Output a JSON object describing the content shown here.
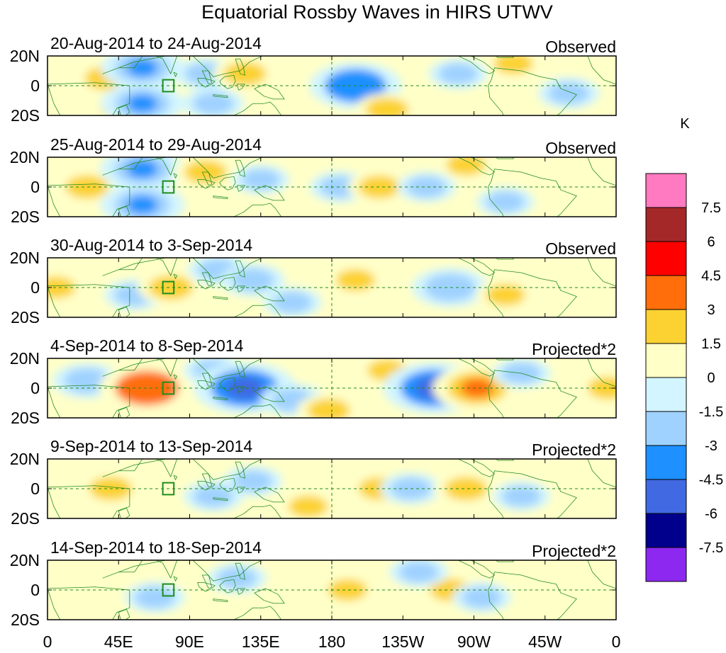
{
  "chart_data": {
    "type": "heatmap",
    "title": "Equatorial Rossby Waves in HIRS UTWV",
    "x_ticks": [
      "0",
      "45E",
      "90E",
      "135E",
      "180",
      "135W",
      "90W",
      "45W",
      "0"
    ],
    "y_ticks": [
      "20N",
      "0",
      "20S"
    ],
    "xlim_deg_east": [
      0,
      360
    ],
    "ylim_deg": [
      -20,
      20
    ],
    "reference_lines": [
      "equator",
      "180"
    ],
    "panels": [
      {
        "date_range": "20-Aug-2014 to 24-Aug-2014",
        "type": "Observed"
      },
      {
        "date_range": "25-Aug-2014 to 29-Aug-2014",
        "type": "Observed"
      },
      {
        "date_range": "30-Aug-2014 to 3-Sep-2014",
        "type": "Observed"
      },
      {
        "date_range": "4-Sep-2014 to 8-Sep-2014",
        "type": "Projected*2"
      },
      {
        "date_range": "9-Sep-2014 to 13-Sep-2014",
        "type": "Projected*2"
      },
      {
        "date_range": "14-Sep-2014 to 18-Sep-2014",
        "type": "Projected*2"
      }
    ],
    "colorbar": {
      "unit": "K",
      "labels": [
        "7.5",
        "6",
        "4.5",
        "3",
        "1.5",
        "0",
        "-1.5",
        "-3",
        "-4.5",
        "-6",
        "-7.5"
      ],
      "bins": [
        {
          "range": "> 7.5",
          "color": "#ff7ac0"
        },
        {
          "range": "6 to 7.5",
          "color": "#a52828"
        },
        {
          "range": "4.5 to 6",
          "color": "#ff0000"
        },
        {
          "range": "3 to 4.5",
          "color": "#ff6e0a"
        },
        {
          "range": "1.5 to 3",
          "color": "#fcd232"
        },
        {
          "range": "0 to 1.5",
          "color": "#ffffc8"
        },
        {
          "range": "-1.5 to 0",
          "color": "#d2f5ff"
        },
        {
          "range": "-3 to -1.5",
          "color": "#a0d2ff"
        },
        {
          "range": "-4.5 to -3",
          "color": "#1e90ff"
        },
        {
          "range": "-6 to -4.5",
          "color": "#4169e1"
        },
        {
          "range": "-7.5 to -6",
          "color": "#00008c"
        },
        {
          "range": "< -7.5",
          "color": "#8c28f0"
        }
      ]
    },
    "anomaly_features": [
      [
        {
          "lon": 37,
          "lat": 5,
          "val": 2.0
        },
        {
          "lon": 47,
          "lat": -15,
          "val": 2.0
        },
        {
          "lon": 60,
          "lat": 12,
          "val": -3.5
        },
        {
          "lon": 60,
          "lat": -12,
          "val": -3.5
        },
        {
          "lon": 100,
          "lat": 8,
          "val": -1.8
        },
        {
          "lon": 105,
          "lat": -12,
          "val": -1.8
        },
        {
          "lon": 125,
          "lat": 8,
          "val": 2.0
        },
        {
          "lon": 195,
          "lat": 0,
          "val": -4.2
        },
        {
          "lon": 215,
          "lat": -16,
          "val": 2.0
        },
        {
          "lon": 260,
          "lat": 8,
          "val": -1.6
        },
        {
          "lon": 295,
          "lat": 15,
          "val": 1.6
        },
        {
          "lon": 330,
          "lat": -5,
          "val": -1.8
        }
      ],
      [
        {
          "lon": 25,
          "lat": 0,
          "val": 2.0
        },
        {
          "lon": 60,
          "lat": 12,
          "val": -3.6
        },
        {
          "lon": 60,
          "lat": -12,
          "val": -3.6
        },
        {
          "lon": 100,
          "lat": 10,
          "val": 2.0
        },
        {
          "lon": 135,
          "lat": 5,
          "val": -1.5
        },
        {
          "lon": 185,
          "lat": 0,
          "val": -1.7
        },
        {
          "lon": 210,
          "lat": 0,
          "val": 1.9
        },
        {
          "lon": 240,
          "lat": 0,
          "val": -1.6
        },
        {
          "lon": 265,
          "lat": 15,
          "val": 1.6
        },
        {
          "lon": 290,
          "lat": -10,
          "val": -1.5
        }
      ],
      [
        {
          "lon": 5,
          "lat": 0,
          "val": 1.7
        },
        {
          "lon": 55,
          "lat": -5,
          "val": -1.7
        },
        {
          "lon": 78,
          "lat": 0,
          "val": 2.2
        },
        {
          "lon": 108,
          "lat": 12,
          "val": -1.7
        },
        {
          "lon": 130,
          "lat": 5,
          "val": -2.0
        },
        {
          "lon": 155,
          "lat": -10,
          "val": -1.6
        },
        {
          "lon": 195,
          "lat": 5,
          "val": 1.6
        },
        {
          "lon": 255,
          "lat": 0,
          "val": -3.0
        },
        {
          "lon": 290,
          "lat": -5,
          "val": 1.6
        }
      ],
      [
        {
          "lon": 25,
          "lat": 5,
          "val": -2.4
        },
        {
          "lon": 63,
          "lat": 0,
          "val": 4.5
        },
        {
          "lon": 105,
          "lat": 12,
          "val": -1.7
        },
        {
          "lon": 125,
          "lat": 0,
          "val": -5.0
        },
        {
          "lon": 155,
          "lat": -8,
          "val": -2.0
        },
        {
          "lon": 178,
          "lat": -15,
          "val": 2.0
        },
        {
          "lon": 215,
          "lat": 12,
          "val": 1.6
        },
        {
          "lon": 245,
          "lat": 0,
          "val": -5.0
        },
        {
          "lon": 272,
          "lat": 0,
          "val": 4.0
        },
        {
          "lon": 300,
          "lat": 10,
          "val": -1.6
        },
        {
          "lon": 355,
          "lat": 0,
          "val": 1.8
        }
      ],
      [
        {
          "lon": 40,
          "lat": 0,
          "val": 2.0
        },
        {
          "lon": 105,
          "lat": -5,
          "val": -1.7
        },
        {
          "lon": 130,
          "lat": 5,
          "val": -1.6
        },
        {
          "lon": 165,
          "lat": -12,
          "val": 1.6
        },
        {
          "lon": 210,
          "lat": 0,
          "val": 1.8
        },
        {
          "lon": 230,
          "lat": 0,
          "val": -1.8
        },
        {
          "lon": 265,
          "lat": 0,
          "val": 2.0
        },
        {
          "lon": 300,
          "lat": -5,
          "val": -1.5
        }
      ],
      [
        {
          "lon": 68,
          "lat": -5,
          "val": -1.7
        },
        {
          "lon": 120,
          "lat": 8,
          "val": -1.6
        },
        {
          "lon": 190,
          "lat": 0,
          "val": 1.6
        },
        {
          "lon": 255,
          "lat": 0,
          "val": 1.8
        },
        {
          "lon": 275,
          "lat": -5,
          "val": -1.6
        },
        {
          "lon": 235,
          "lat": 12,
          "val": -1.6
        }
      ]
    ]
  }
}
